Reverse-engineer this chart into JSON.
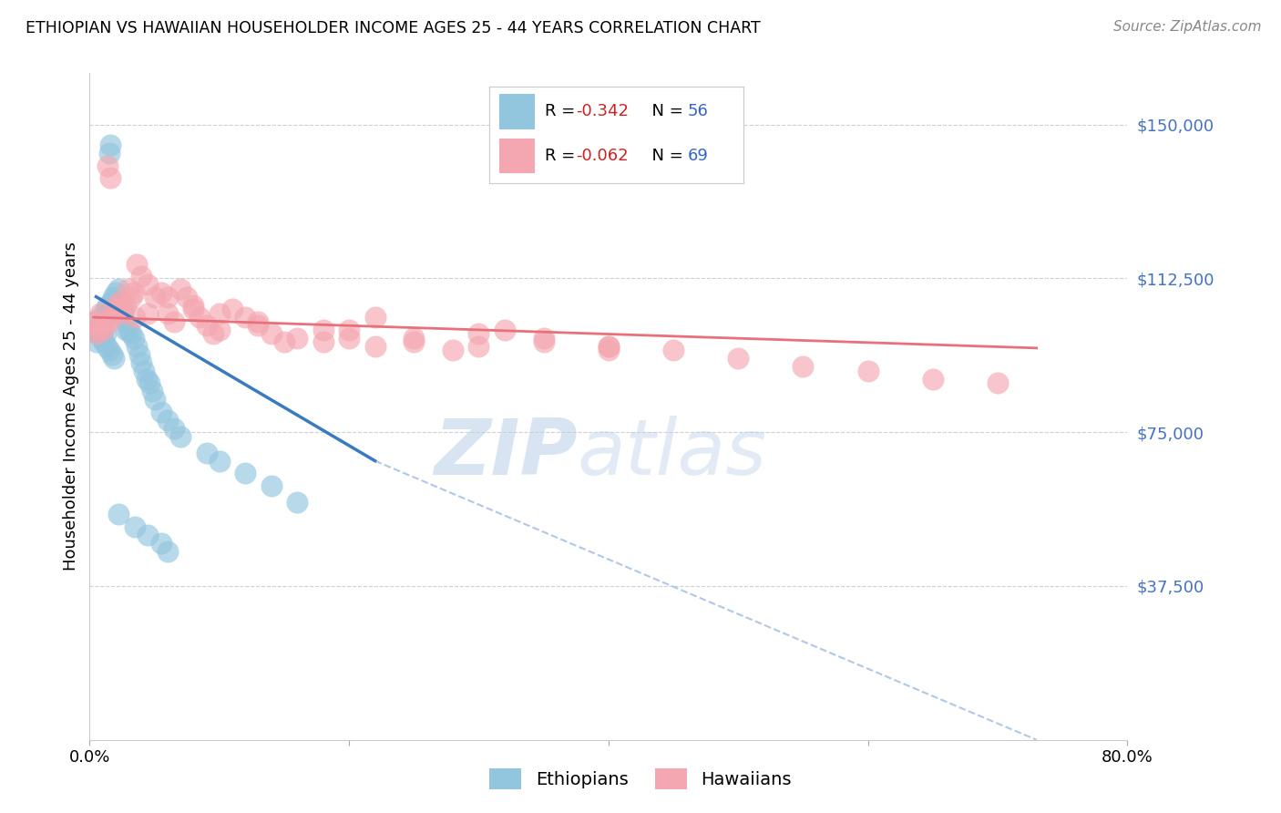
{
  "title": "ETHIOPIAN VS HAWAIIAN HOUSEHOLDER INCOME AGES 25 - 44 YEARS CORRELATION CHART",
  "source": "Source: ZipAtlas.com",
  "ylabel": "Householder Income Ages 25 - 44 years",
  "ytick_labels": [
    "$37,500",
    "$75,000",
    "$112,500",
    "$150,000"
  ],
  "ytick_values": [
    37500,
    75000,
    112500,
    150000
  ],
  "ylim": [
    0,
    162500
  ],
  "xlim": [
    0.0,
    0.8
  ],
  "watermark_zip": "ZIP",
  "watermark_atlas": "atlas",
  "eth_color": "#92c5de",
  "haw_color": "#f4a7b0",
  "eth_line_color": "#3a7bbf",
  "haw_line_color": "#e8707a",
  "dashed_line_color": "#b0c8e8",
  "background_color": "#ffffff",
  "grid_color": "#d0d0d0",
  "eth_R": "-0.342",
  "eth_N": "56",
  "haw_R": "-0.062",
  "haw_N": "69",
  "eth_scatter_x": [
    0.005,
    0.008,
    0.01,
    0.012,
    0.013,
    0.014,
    0.015,
    0.016,
    0.017,
    0.018,
    0.019,
    0.02,
    0.021,
    0.022,
    0.023,
    0.024,
    0.025,
    0.026,
    0.027,
    0.028,
    0.03,
    0.032,
    0.034,
    0.036,
    0.038,
    0.04,
    0.042,
    0.044,
    0.046,
    0.048,
    0.05,
    0.055,
    0.06,
    0.065,
    0.07,
    0.09,
    0.1,
    0.12,
    0.14,
    0.16,
    0.005,
    0.007,
    0.009,
    0.011,
    0.013,
    0.015,
    0.017,
    0.019,
    0.008,
    0.01,
    0.012,
    0.022,
    0.035,
    0.045,
    0.055,
    0.06
  ],
  "eth_scatter_y": [
    100000,
    103000,
    102000,
    105000,
    104000,
    106000,
    143000,
    145000,
    107000,
    108000,
    107000,
    109000,
    106000,
    110000,
    105000,
    104000,
    103000,
    105000,
    102000,
    100000,
    100000,
    99000,
    98000,
    96000,
    94000,
    92000,
    90000,
    88000,
    87000,
    85000,
    83000,
    80000,
    78000,
    76000,
    74000,
    70000,
    68000,
    65000,
    62000,
    58000,
    97000,
    99000,
    98000,
    97000,
    96000,
    95000,
    94000,
    93000,
    101000,
    100000,
    99000,
    55000,
    52000,
    50000,
    48000,
    46000
  ],
  "haw_scatter_x": [
    0.003,
    0.005,
    0.007,
    0.009,
    0.01,
    0.012,
    0.014,
    0.016,
    0.018,
    0.02,
    0.022,
    0.024,
    0.026,
    0.028,
    0.03,
    0.032,
    0.034,
    0.036,
    0.04,
    0.045,
    0.05,
    0.055,
    0.06,
    0.065,
    0.07,
    0.075,
    0.08,
    0.085,
    0.09,
    0.095,
    0.1,
    0.11,
    0.12,
    0.13,
    0.14,
    0.15,
    0.16,
    0.18,
    0.2,
    0.22,
    0.25,
    0.28,
    0.3,
    0.32,
    0.35,
    0.4,
    0.45,
    0.5,
    0.55,
    0.6,
    0.65,
    0.7,
    0.008,
    0.015,
    0.025,
    0.035,
    0.045,
    0.06,
    0.08,
    0.1,
    0.13,
    0.18,
    0.25,
    0.35,
    0.4,
    0.22,
    0.3,
    0.4,
    0.2
  ],
  "haw_scatter_y": [
    102000,
    99000,
    100000,
    101000,
    100000,
    102000,
    140000,
    137000,
    104000,
    106000,
    105000,
    107000,
    104000,
    106000,
    110000,
    108000,
    109000,
    116000,
    113000,
    111000,
    108000,
    109000,
    104000,
    102000,
    110000,
    108000,
    105000,
    103000,
    101000,
    99000,
    100000,
    105000,
    103000,
    101000,
    99000,
    97000,
    98000,
    97000,
    98000,
    96000,
    97000,
    95000,
    96000,
    100000,
    98000,
    96000,
    95000,
    93000,
    91000,
    90000,
    88000,
    87000,
    104000,
    102000,
    105000,
    103000,
    104000,
    108000,
    106000,
    104000,
    102000,
    100000,
    98000,
    97000,
    95000,
    103000,
    99000,
    96000,
    100000
  ],
  "eth_trend_x": [
    0.005,
    0.22
  ],
  "eth_trend_y": [
    108000,
    68000
  ],
  "haw_trend_x": [
    0.003,
    0.73
  ],
  "haw_trend_y": [
    103000,
    95500
  ],
  "dashed_trend_x": [
    0.22,
    0.73
  ],
  "dashed_trend_y": [
    68000,
    0
  ]
}
